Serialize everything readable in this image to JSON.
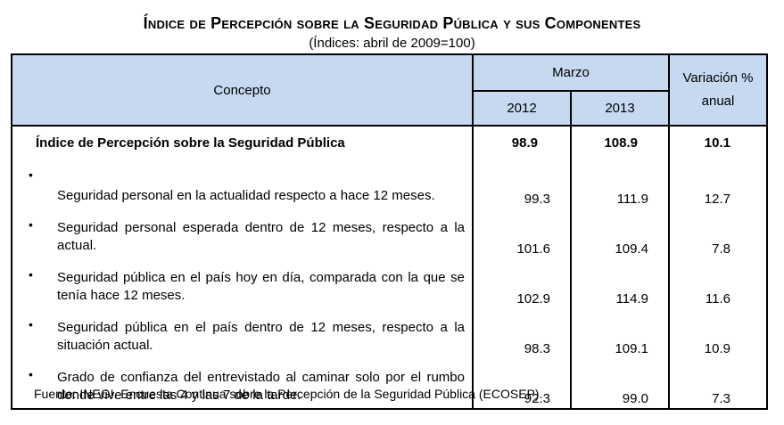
{
  "title": "Índice de Percepción sobre la Seguridad Pública y sus Componentes",
  "subtitle": "(Índices: abril de 2009=100)",
  "header": {
    "concepto": "Concepto",
    "marzo": "Marzo",
    "year_a": "2012",
    "year_b": "2013",
    "variacion": "Variación % anual"
  },
  "main_row": {
    "label": "Índice de Percepción sobre la Seguridad Pública",
    "v2012": "98.9",
    "v2013": "108.9",
    "var": "10.1"
  },
  "rows": [
    {
      "bullet": "•",
      "label": "Seguridad personal en la actualidad respecto a hace 12 meses.",
      "v2012": "99.3",
      "v2013": "111.9",
      "var": "12.7"
    },
    {
      "bullet": "•",
      "label": "Seguridad personal esperada dentro de 12 meses, respecto a la actual.",
      "v2012": "101.6",
      "v2013": "109.4",
      "var": "7.8"
    },
    {
      "bullet": "•",
      "label": "Seguridad pública en el país hoy en día, comparada con la que se tenía hace 12 meses.",
      "v2012": "102.9",
      "v2013": "114.9",
      "var": "11.6"
    },
    {
      "bullet": "•",
      "label": "Seguridad pública en el país dentro de 12 meses, respecto a la situación actual.",
      "v2012": "98.3",
      "v2013": "109.1",
      "var": "10.9"
    },
    {
      "bullet": "•",
      "label": "Grado de confianza del entrevistado al caminar solo por el rumbo donde vive entre las 4 y las 7 de la tarde.",
      "v2012": "92.3",
      "v2013": "99.0",
      "var": "7.3"
    }
  ],
  "source": "Fuente: INEGI. Encuesta Continua sobre la Percepción de la Seguridad Pública (ECOSEP)."
}
